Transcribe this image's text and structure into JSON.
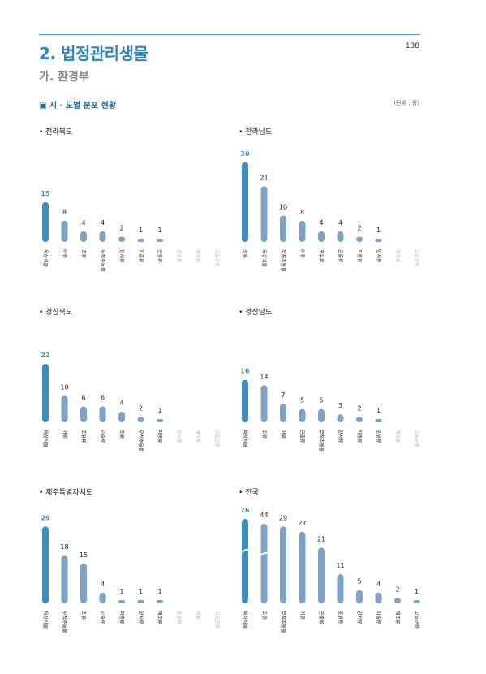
{
  "header": {
    "section_title": "2. 법정관리생물",
    "subsection_title": "가. 환경부",
    "page_number": "138"
  },
  "figure": {
    "title": "▣ 시 · 도별 분포 현황",
    "unit": "(단위 : 종)"
  },
  "colors": {
    "highlight": "#3d8dbd",
    "bar": "#7ea3c6",
    "empty_label": "#b5b5b5",
    "label": "#222222"
  },
  "chart_data": [
    {
      "type": "bar",
      "title": "• 전라북도",
      "categories": [
        "육상식물",
        "어류",
        "조류",
        "무척추동물",
        "양서류",
        "파충류",
        "곤충류",
        "포유류",
        "해조류",
        "고등균류"
      ],
      "values": [
        15,
        8,
        4,
        4,
        2,
        1,
        1,
        0,
        0,
        0
      ],
      "ylim": [
        0,
        30
      ]
    },
    {
      "type": "bar",
      "title": "• 전라남도",
      "categories": [
        "조류",
        "육상식물",
        "무척추동물",
        "어류",
        "포유류",
        "곤충류",
        "파충류",
        "양서류",
        "해조류",
        "고등균류"
      ],
      "values": [
        30,
        21,
        10,
        8,
        4,
        4,
        2,
        1,
        0,
        0
      ],
      "ylim": [
        0,
        30
      ]
    },
    {
      "type": "bar",
      "title": "• 경상북도",
      "categories": [
        "육상식물",
        "어류",
        "포유류",
        "곤충류",
        "조류",
        "무척추동물",
        "파충류",
        "양서류",
        "해조류",
        "고등균류"
      ],
      "values": [
        22,
        10,
        6,
        6,
        4,
        2,
        1,
        0,
        0,
        0
      ],
      "ylim": [
        0,
        30
      ]
    },
    {
      "type": "bar",
      "title": "• 경상남도",
      "categories": [
        "육상식물",
        "조류",
        "어류",
        "곤충류",
        "무척추동물",
        "양서류",
        "파충류",
        "포유류",
        "해조류",
        "고등균류"
      ],
      "values": [
        16,
        14,
        7,
        5,
        5,
        3,
        2,
        1,
        0,
        0
      ],
      "ylim": [
        0,
        30
      ]
    },
    {
      "type": "bar",
      "title": "• 제주특별자치도",
      "categories": [
        "육상식물",
        "무척추동물",
        "조류",
        "곤충류",
        "파충류",
        "양서류",
        "해조류",
        "포유류",
        "어류",
        "고등균류"
      ],
      "values": [
        29,
        18,
        15,
        4,
        1,
        1,
        1,
        0,
        0,
        0
      ],
      "ylim": [
        0,
        30
      ]
    },
    {
      "type": "bar",
      "title": "• 전국",
      "categories": [
        "육상식물",
        "조류",
        "무척추동물",
        "어류",
        "곤충류",
        "포유류",
        "양서류",
        "파충류",
        "해조류",
        "고등균류"
      ],
      "values": [
        76,
        44,
        29,
        27,
        21,
        11,
        5,
        4,
        2,
        1
      ],
      "ylim": [
        0,
        30
      ],
      "axis_break": true
    }
  ]
}
